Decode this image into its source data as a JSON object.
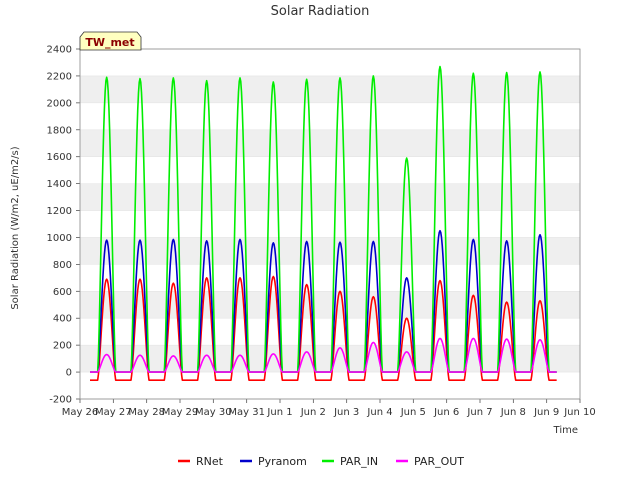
{
  "chart_data": {
    "type": "line",
    "title": "Solar Radiation",
    "xlabel": "Time",
    "ylabel": "Solar Radiation (W/m2, uE/m2/s)",
    "station_label": "TW_met",
    "ylim": [
      -200,
      2400
    ],
    "yticks": [
      -200,
      0,
      200,
      400,
      600,
      800,
      1000,
      1200,
      1400,
      1600,
      1800,
      2000,
      2200,
      2400
    ],
    "xlim": [
      0,
      15
    ],
    "xtick_labels": [
      "May 26",
      "May 27",
      "May 28",
      "May 29",
      "May 30",
      "May 31",
      "Jun 1",
      "Jun 2",
      "Jun 3",
      "Jun 4",
      "Jun 5",
      "Jun 6",
      "Jun 7",
      "Jun 8",
      "Jun 9",
      "Jun 10"
    ],
    "grid": "horizontal bands",
    "legend_position": "bottom",
    "day_centers": [
      0.8,
      1.8,
      2.8,
      3.8,
      4.8,
      5.8,
      6.8,
      7.8,
      8.8,
      9.8,
      10.8,
      11.8,
      12.8,
      13.8
    ],
    "series": [
      {
        "name": "RNet",
        "color": "#ff0000",
        "night_value": -60,
        "daily_peaks": [
          690,
          690,
          660,
          700,
          700,
          710,
          650,
          600,
          560,
          400,
          680,
          570,
          520,
          530
        ]
      },
      {
        "name": "Pyranom",
        "color": "#0000cc",
        "night_value": 0,
        "daily_peaks": [
          980,
          980,
          985,
          975,
          985,
          960,
          970,
          965,
          970,
          700,
          1050,
          985,
          975,
          1020
        ]
      },
      {
        "name": "PAR_IN",
        "color": "#00ee00",
        "night_value": 0,
        "daily_peaks": [
          2190,
          2180,
          2185,
          2165,
          2185,
          2155,
          2175,
          2185,
          2200,
          1590,
          2270,
          2220,
          2225,
          2230
        ]
      },
      {
        "name": "PAR_OUT",
        "color": "#ff00ff",
        "night_value": 0,
        "daily_peaks": [
          130,
          125,
          120,
          125,
          125,
          135,
          150,
          180,
          220,
          150,
          250,
          250,
          245,
          240
        ]
      }
    ]
  }
}
